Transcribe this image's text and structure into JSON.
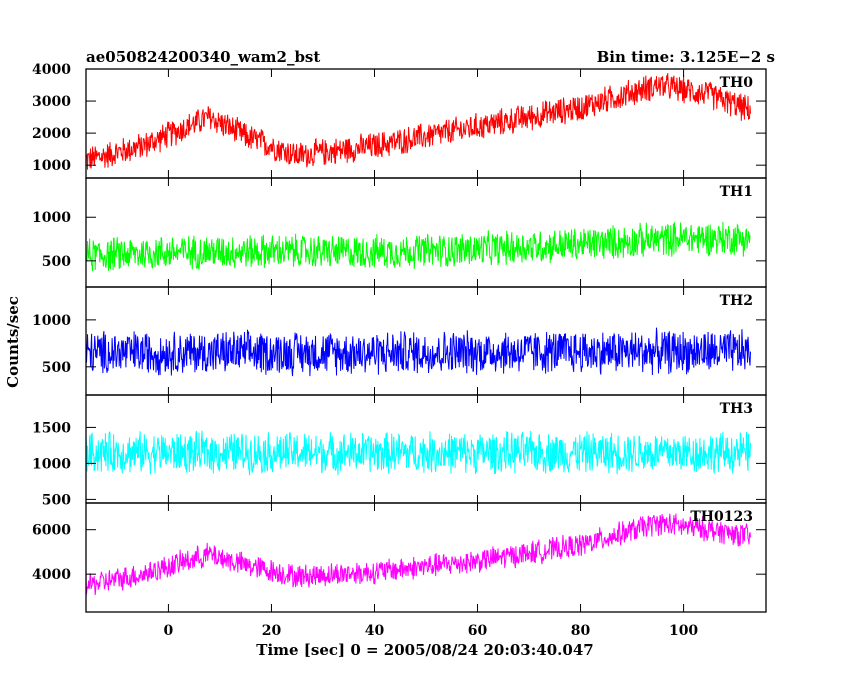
{
  "chart_data": {
    "type": "line",
    "title_left": "ae050824200340_wam2_bst",
    "title_right": "Bin time: 3.125E−2 s",
    "xlabel": "Time [sec] 0 = 2005/08/24 20:03:40.047",
    "ylabel": "Counts/sec",
    "xlim": [
      -16,
      116
    ],
    "x_ticks": [
      0,
      20,
      40,
      60,
      80,
      100
    ],
    "grid": false,
    "panels": [
      {
        "name": "TH0",
        "color": "#ff0000",
        "ylim": [
          600,
          4000
        ],
        "y_ticks": [
          1000,
          2000,
          3000,
          4000
        ],
        "trend": [
          [
            -16,
            1150
          ],
          [
            -5,
            1600
          ],
          [
            8,
            2500
          ],
          [
            15,
            1900
          ],
          [
            25,
            1300
          ],
          [
            40,
            1600
          ],
          [
            60,
            2200
          ],
          [
            80,
            2800
          ],
          [
            95,
            3500
          ],
          [
            105,
            3200
          ],
          [
            113,
            2700
          ]
        ],
        "noise": 480
      },
      {
        "name": "TH1",
        "color": "#00ff00",
        "ylim": [
          200,
          1450
        ],
        "y_ticks": [
          500,
          1000
        ],
        "trend": [
          [
            -16,
            560
          ],
          [
            0,
            600
          ],
          [
            20,
            610
          ],
          [
            40,
            600
          ],
          [
            60,
            630
          ],
          [
            80,
            690
          ],
          [
            100,
            760
          ],
          [
            113,
            760
          ]
        ],
        "noise": 220
      },
      {
        "name": "TH2",
        "color": "#0000ff",
        "ylim": [
          200,
          1350
        ],
        "y_ticks": [
          500,
          1000
        ],
        "trend": [
          [
            -16,
            650
          ],
          [
            40,
            650
          ],
          [
            80,
            660
          ],
          [
            113,
            660
          ]
        ],
        "noise": 260
      },
      {
        "name": "TH3",
        "color": "#00ffff",
        "ylim": [
          450,
          1950
        ],
        "y_ticks": [
          500,
          1000,
          1500
        ],
        "trend": [
          [
            -16,
            1150
          ],
          [
            40,
            1150
          ],
          [
            80,
            1150
          ],
          [
            113,
            1150
          ]
        ],
        "noise": 320
      },
      {
        "name": "TH0123",
        "color": "#ff00ff",
        "ylim": [
          2300,
          7200
        ],
        "y_ticks": [
          4000,
          6000
        ],
        "trend": [
          [
            -16,
            3500
          ],
          [
            -5,
            4000
          ],
          [
            8,
            4900
          ],
          [
            15,
            4400
          ],
          [
            25,
            3900
          ],
          [
            40,
            4100
          ],
          [
            60,
            4600
          ],
          [
            80,
            5300
          ],
          [
            95,
            6300
          ],
          [
            105,
            6000
          ],
          [
            113,
            5700
          ]
        ],
        "noise": 600
      }
    ]
  }
}
